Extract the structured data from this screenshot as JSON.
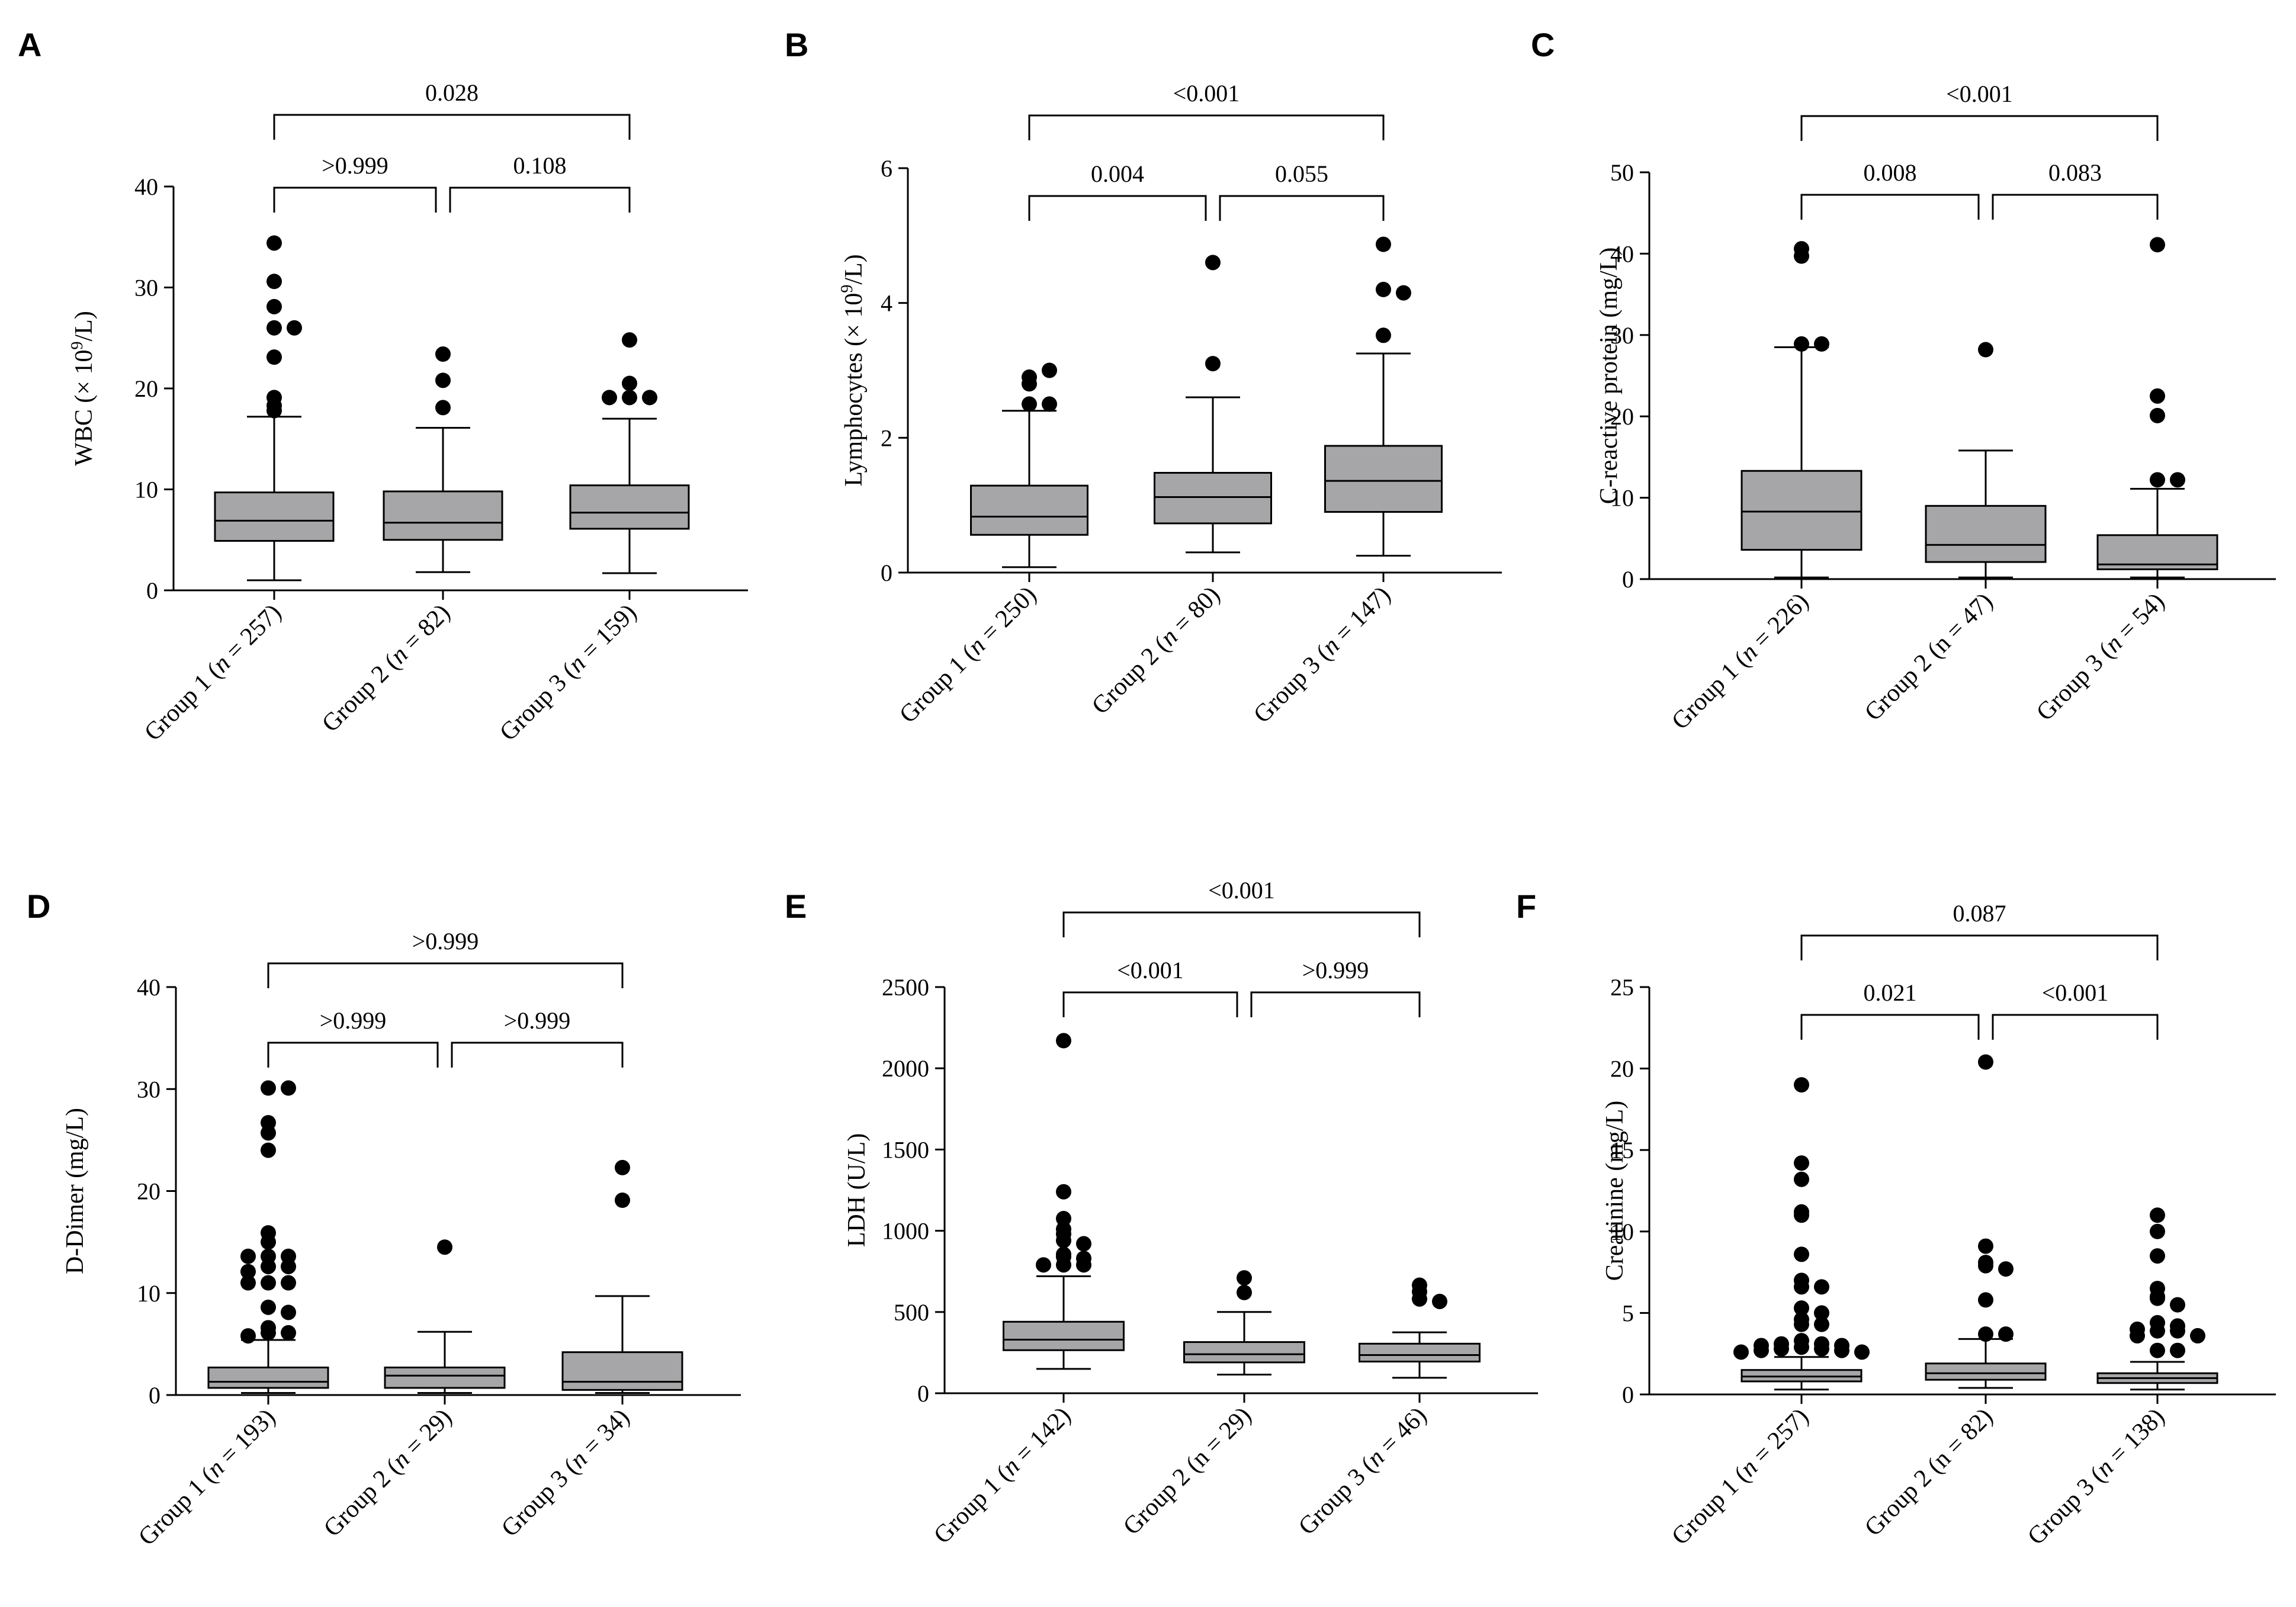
{
  "chart_data": [
    {
      "type": "box",
      "panel": "A",
      "ylabel": "WBC (× 10<sup>9</sup>/L)",
      "ylabel_base": "WBC (× 10",
      "ylabel_sup": "9",
      "ylabel_tail": "/L)",
      "ylim": [
        0,
        40
      ],
      "yticks": [
        0,
        10,
        20,
        30,
        40
      ],
      "categories": [
        {
          "pre": "Group 1 (",
          "n_italic": "n",
          "post": " = 257)"
        },
        {
          "pre": "Group 2 (",
          "n_italic": "n",
          "post": " = 82)"
        },
        {
          "pre": "Group 3 (",
          "n_italic": "n",
          "post": " = 159)"
        }
      ],
      "boxes": [
        {
          "whisker_low": 1.0,
          "q1": 4.9,
          "median": 6.9,
          "q3": 9.7,
          "whisker_high": 17.2,
          "outliers": [
            34.4,
            30.6,
            28.1,
            26.0,
            26.0,
            23.1,
            19.1,
            18.3,
            17.8
          ]
        },
        {
          "whisker_low": 1.8,
          "q1": 5.0,
          "median": 6.7,
          "q3": 9.8,
          "whisker_high": 16.1,
          "outliers": [
            23.4,
            20.8,
            18.1
          ]
        },
        {
          "whisker_low": 1.7,
          "q1": 6.1,
          "median": 7.7,
          "q3": 10.4,
          "whisker_high": 17.0,
          "outliers": [
            24.8,
            20.5,
            19.1,
            19.1,
            19.1
          ]
        }
      ],
      "comparisons": [
        {
          "from": 0,
          "to": 2,
          "label": "0.028",
          "level": 2
        },
        {
          "from": 0,
          "to": 1,
          "label": ">0.999",
          "level": 1
        },
        {
          "from": 1,
          "to": 2,
          "label": "0.108",
          "level": 1
        }
      ]
    },
    {
      "type": "box",
      "panel": "B",
      "ylabel_base": "Lymphocytes (× 10",
      "ylabel_sup": "9",
      "ylabel_tail": "/L)",
      "ylim": [
        0,
        6
      ],
      "yticks": [
        0,
        2,
        4,
        6
      ],
      "categories": [
        {
          "pre": "Group 1 (",
          "n_italic": "n",
          "post": " = 250)"
        },
        {
          "pre": "Group 2 (",
          "n_italic": "n",
          "post": " = 80)"
        },
        {
          "pre": "Group 3 (",
          "n_italic": "n",
          "post": " = 147)"
        }
      ],
      "boxes": [
        {
          "whisker_low": 0.08,
          "q1": 0.56,
          "median": 0.83,
          "q3": 1.29,
          "whisker_high": 2.4,
          "outliers": [
            2.9,
            3.0,
            2.8,
            2.5,
            2.5
          ]
        },
        {
          "whisker_low": 0.3,
          "q1": 0.73,
          "median": 1.12,
          "q3": 1.48,
          "whisker_high": 2.6,
          "outliers": [
            4.6,
            3.1
          ]
        },
        {
          "whisker_low": 0.25,
          "q1": 0.9,
          "median": 1.36,
          "q3": 1.88,
          "whisker_high": 3.25,
          "outliers": [
            4.87,
            4.2,
            4.15,
            3.52
          ]
        }
      ],
      "comparisons": [
        {
          "from": 0,
          "to": 2,
          "label": "<0.001",
          "level": 2
        },
        {
          "from": 0,
          "to": 1,
          "label": "0.004",
          "level": 1
        },
        {
          "from": 1,
          "to": 2,
          "label": "0.055",
          "level": 1
        }
      ]
    },
    {
      "type": "box",
      "panel": "C",
      "ylabel_base": "C-reactive protein (mg/L)",
      "ylabel_sup": "",
      "ylabel_tail": "",
      "ylim": [
        0,
        50
      ],
      "yticks": [
        0,
        10,
        20,
        30,
        40,
        50
      ],
      "categories": [
        {
          "pre": "Group 1 (",
          "n_italic": "n",
          "post": " = 226)"
        },
        {
          "pre": "Group 2 (n = 47)",
          "n_italic": "",
          "post": ""
        },
        {
          "pre": "Group 3 (",
          "n_italic": "n",
          "post": " = 54)"
        }
      ],
      "boxes": [
        {
          "whisker_low": 0.2,
          "q1": 3.6,
          "median": 8.3,
          "q3": 13.3,
          "whisker_high": 28.5,
          "outliers": [
            40.6,
            39.7,
            28.9,
            28.9
          ]
        },
        {
          "whisker_low": 0.2,
          "q1": 2.1,
          "median": 4.2,
          "q3": 9.0,
          "whisker_high": 15.8,
          "outliers": [
            28.2
          ]
        },
        {
          "whisker_low": 0.2,
          "q1": 1.2,
          "median": 1.8,
          "q3": 5.4,
          "whisker_high": 11.1,
          "outliers": [
            41.1,
            22.5,
            20.1,
            12.2,
            12.2
          ]
        }
      ],
      "comparisons": [
        {
          "from": 0,
          "to": 2,
          "label": "<0.001",
          "level": 2
        },
        {
          "from": 0,
          "to": 1,
          "label": "0.008",
          "level": 1
        },
        {
          "from": 1,
          "to": 2,
          "label": "0.083",
          "level": 1
        }
      ]
    },
    {
      "type": "box",
      "panel": "D",
      "ylabel_base": "D-Dimer (mg/L)",
      "ylabel_sup": "",
      "ylabel_tail": "",
      "ylim": [
        0,
        40
      ],
      "yticks": [
        0,
        10,
        20,
        30,
        40
      ],
      "categories": [
        {
          "pre": "Group 1 (",
          "n_italic": "n",
          "post": " = 193)"
        },
        {
          "pre": "Group 2 (",
          "n_italic": "n",
          "post": " = 29)"
        },
        {
          "pre": "Group 3 (",
          "n_italic": "n",
          "post": " = 34)"
        }
      ],
      "boxes": [
        {
          "whisker_low": 0.2,
          "q1": 0.7,
          "median": 1.3,
          "q3": 2.7,
          "whisker_high": 5.4,
          "outliers": [
            30.1,
            30.1,
            26.7,
            25.7,
            24.0,
            15.9,
            15.0,
            13.6,
            13.6,
            13.6,
            12.6,
            12.6,
            12.1,
            11.0,
            11.0,
            11.0,
            8.6,
            8.1,
            6.6,
            6.1,
            6.1,
            5.8
          ]
        },
        {
          "whisker_low": 0.2,
          "q1": 0.7,
          "median": 1.9,
          "q3": 2.7,
          "whisker_high": 6.2,
          "outliers": [
            14.5
          ]
        },
        {
          "whisker_low": 0.2,
          "q1": 0.5,
          "median": 1.3,
          "q3": 4.2,
          "whisker_high": 9.7,
          "outliers": [
            22.3,
            19.1
          ]
        }
      ],
      "comparisons": [
        {
          "from": 0,
          "to": 2,
          "label": ">0.999",
          "level": 2
        },
        {
          "from": 0,
          "to": 1,
          "label": ">0.999",
          "level": 1
        },
        {
          "from": 1,
          "to": 2,
          "label": ">0.999",
          "level": 1
        }
      ]
    },
    {
      "type": "box",
      "panel": "E",
      "ylabel_base": "LDH (U/L)",
      "ylabel_sup": "",
      "ylabel_tail": "",
      "ylim": [
        0,
        2500
      ],
      "yticks": [
        0,
        500,
        1000,
        1500,
        2000,
        2500
      ],
      "categories": [
        {
          "pre": "Group 1 (",
          "n_italic": "n",
          "post": " = 142)"
        },
        {
          "pre": "Group 2 (n = 29)",
          "n_italic": "",
          "post": ""
        },
        {
          "pre": "Group 3 (",
          "n_italic": "n",
          "post": " = 46)"
        }
      ],
      "boxes": [
        {
          "whisker_low": 150,
          "q1": 265,
          "median": 330,
          "q3": 440,
          "whisker_high": 720,
          "outliers": [
            2170,
            1240,
            1075,
            1010,
            980,
            940,
            920,
            855,
            840,
            830,
            790,
            790,
            790
          ]
        },
        {
          "whisker_low": 115,
          "q1": 190,
          "median": 240,
          "q3": 315,
          "whisker_high": 500,
          "outliers": [
            710,
            620
          ]
        },
        {
          "whisker_low": 95,
          "q1": 195,
          "median": 235,
          "q3": 305,
          "whisker_high": 375,
          "outliers": [
            665,
            625,
            580,
            565
          ]
        }
      ],
      "comparisons": [
        {
          "from": 0,
          "to": 2,
          "label": "<0.001",
          "level": 2
        },
        {
          "from": 0,
          "to": 1,
          "label": "<0.001",
          "level": 1
        },
        {
          "from": 1,
          "to": 2,
          "label": ">0.999",
          "level": 1
        }
      ]
    },
    {
      "type": "box",
      "panel": "F",
      "ylabel_base": "Creatinine (mg/L)",
      "ylabel_sup": "",
      "ylabel_tail": "",
      "ylim": [
        0,
        25
      ],
      "yticks": [
        0,
        5,
        10,
        15,
        20,
        25
      ],
      "categories": [
        {
          "pre": "Group 1 (",
          "n_italic": "n",
          "post": " = 257)"
        },
        {
          "pre": "Group 2 (n = 82)",
          "n_italic": "",
          "post": ""
        },
        {
          "pre": "Group 3 (",
          "n_italic": "n",
          "post": " = 138)"
        }
      ],
      "boxes": [
        {
          "whisker_low": 0.3,
          "q1": 0.8,
          "median": 1.1,
          "q3": 1.5,
          "whisker_high": 2.3,
          "outliers": [
            19.0,
            14.2,
            13.2,
            11.2,
            11.0,
            8.6,
            7.0,
            6.6,
            6.6,
            5.3,
            5.0,
            4.6,
            4.3,
            4.3,
            3.3,
            3.1,
            3.1,
            3.0,
            3.0,
            2.9,
            2.8,
            2.8,
            2.7,
            2.7,
            2.6,
            2.6
          ]
        },
        {
          "whisker_low": 0.4,
          "q1": 0.9,
          "median": 1.3,
          "q3": 1.9,
          "whisker_high": 3.4,
          "outliers": [
            20.4,
            9.1,
            8.1,
            7.9,
            7.7,
            5.8,
            3.7,
            3.7
          ]
        },
        {
          "whisker_low": 0.3,
          "q1": 0.7,
          "median": 1.0,
          "q3": 1.3,
          "whisker_high": 2.0,
          "outliers": [
            11.0,
            10.0,
            8.5,
            6.5,
            6.0,
            5.9,
            5.5,
            4.4,
            4.2,
            4.0,
            3.9,
            3.9,
            3.6,
            3.6,
            2.7,
            2.7
          ]
        }
      ],
      "comparisons": [
        {
          "from": 0,
          "to": 2,
          "label": "0.087",
          "level": 2
        },
        {
          "from": 0,
          "to": 1,
          "label": "0.021",
          "level": 1
        },
        {
          "from": 1,
          "to": 2,
          "label": "<0.001",
          "level": 1
        }
      ]
    }
  ]
}
